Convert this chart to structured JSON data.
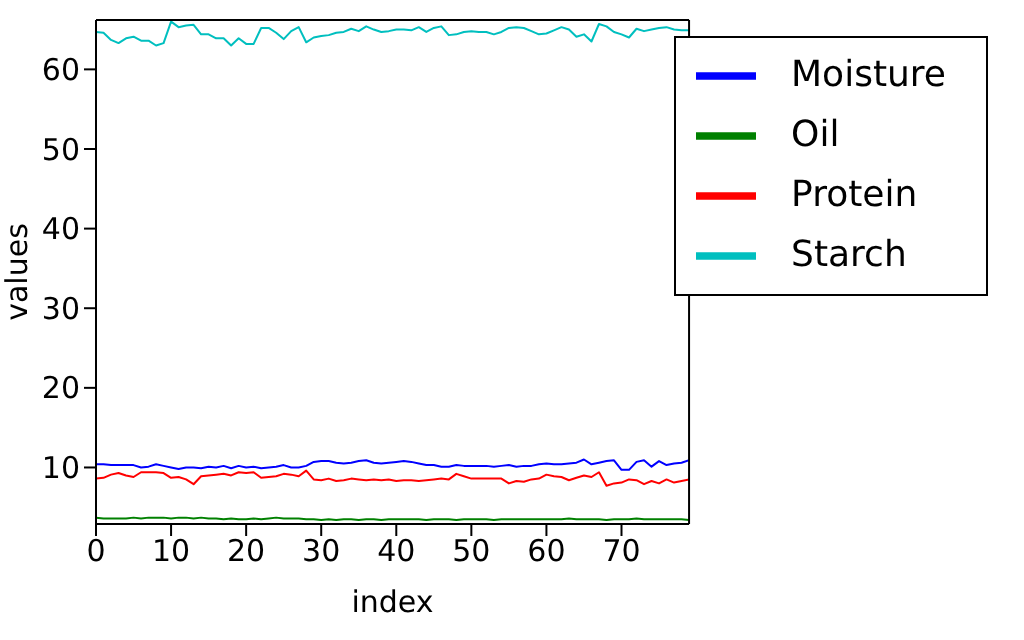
{
  "chart_data": {
    "type": "line",
    "xlabel": "index",
    "ylabel": "values",
    "x": [
      0,
      1,
      2,
      3,
      4,
      5,
      6,
      7,
      8,
      9,
      10,
      11,
      12,
      13,
      14,
      15,
      16,
      17,
      18,
      19,
      20,
      21,
      22,
      23,
      24,
      25,
      26,
      27,
      28,
      29,
      30,
      31,
      32,
      33,
      34,
      35,
      36,
      37,
      38,
      39,
      40,
      41,
      42,
      43,
      44,
      45,
      46,
      47,
      48,
      49,
      50,
      51,
      52,
      53,
      54,
      55,
      56,
      57,
      58,
      59,
      60,
      61,
      62,
      63,
      64,
      65,
      66,
      67,
      68,
      69,
      70,
      71,
      72,
      73,
      74,
      75,
      76,
      77,
      78,
      79
    ],
    "series": [
      {
        "name": "Moisture",
        "color": "#0000ff",
        "values": [
          10.4,
          10.4,
          10.3,
          10.3,
          10.3,
          10.3,
          10.0,
          10.1,
          10.4,
          10.2,
          10.0,
          9.8,
          10.0,
          10.0,
          9.9,
          10.1,
          10.0,
          10.2,
          9.9,
          10.2,
          10.0,
          10.1,
          9.9,
          10.0,
          10.1,
          10.3,
          10.0,
          10.0,
          10.2,
          10.7,
          10.8,
          10.8,
          10.6,
          10.5,
          10.6,
          10.8,
          10.9,
          10.6,
          10.5,
          10.6,
          10.7,
          10.8,
          10.7,
          10.5,
          10.3,
          10.3,
          10.1,
          10.1,
          10.3,
          10.2,
          10.2,
          10.2,
          10.2,
          10.1,
          10.2,
          10.3,
          10.1,
          10.2,
          10.2,
          10.4,
          10.5,
          10.4,
          10.4,
          10.5,
          10.6,
          11.0,
          10.4,
          10.6,
          10.8,
          10.9,
          9.7,
          9.7,
          10.7,
          10.9,
          10.1,
          10.8,
          10.3,
          10.5,
          10.6,
          10.9
        ]
      },
      {
        "name": "Oil",
        "color": "#008000",
        "values": [
          3.7,
          3.6,
          3.6,
          3.6,
          3.6,
          3.7,
          3.6,
          3.7,
          3.7,
          3.7,
          3.6,
          3.7,
          3.7,
          3.6,
          3.7,
          3.6,
          3.6,
          3.5,
          3.6,
          3.5,
          3.5,
          3.6,
          3.5,
          3.6,
          3.7,
          3.6,
          3.6,
          3.6,
          3.5,
          3.5,
          3.4,
          3.5,
          3.4,
          3.5,
          3.5,
          3.4,
          3.5,
          3.5,
          3.4,
          3.5,
          3.5,
          3.5,
          3.5,
          3.5,
          3.4,
          3.5,
          3.5,
          3.5,
          3.4,
          3.5,
          3.5,
          3.5,
          3.5,
          3.4,
          3.5,
          3.5,
          3.5,
          3.5,
          3.5,
          3.5,
          3.5,
          3.5,
          3.5,
          3.6,
          3.5,
          3.5,
          3.5,
          3.5,
          3.4,
          3.5,
          3.5,
          3.5,
          3.6,
          3.5,
          3.5,
          3.5,
          3.5,
          3.5,
          3.5,
          3.4
        ]
      },
      {
        "name": "Protein",
        "color": "#ff0000",
        "values": [
          8.6,
          8.7,
          9.1,
          9.3,
          9.0,
          8.8,
          9.4,
          9.4,
          9.4,
          9.3,
          8.7,
          8.8,
          8.5,
          7.9,
          8.9,
          9.0,
          9.1,
          9.2,
          9.0,
          9.4,
          9.3,
          9.4,
          8.7,
          8.8,
          8.9,
          9.2,
          9.1,
          8.9,
          9.6,
          8.5,
          8.4,
          8.6,
          8.3,
          8.4,
          8.6,
          8.5,
          8.4,
          8.5,
          8.4,
          8.5,
          8.3,
          8.4,
          8.4,
          8.3,
          8.4,
          8.5,
          8.6,
          8.5,
          9.2,
          8.9,
          8.6,
          8.6,
          8.6,
          8.6,
          8.6,
          8.0,
          8.3,
          8.2,
          8.5,
          8.6,
          9.1,
          8.9,
          8.8,
          8.4,
          8.7,
          9.0,
          8.8,
          9.4,
          7.7,
          8.0,
          8.1,
          8.5,
          8.4,
          7.9,
          8.3,
          8.0,
          8.5,
          8.1,
          8.3,
          8.5
        ]
      },
      {
        "name": "Starch",
        "color": "#00bfbf",
        "values": [
          64.7,
          64.6,
          63.7,
          63.3,
          63.9,
          64.1,
          63.6,
          63.6,
          63.0,
          63.3,
          66.0,
          65.3,
          65.5,
          65.6,
          64.4,
          64.4,
          63.9,
          63.9,
          63.0,
          63.9,
          63.2,
          63.2,
          65.2,
          65.2,
          64.6,
          63.8,
          64.8,
          65.3,
          63.4,
          64.0,
          64.2,
          64.3,
          64.6,
          64.7,
          65.1,
          64.8,
          65.4,
          65.0,
          64.7,
          64.8,
          65.0,
          65.0,
          64.9,
          65.3,
          64.7,
          65.2,
          65.4,
          64.3,
          64.4,
          64.7,
          64.8,
          64.7,
          64.7,
          64.4,
          64.7,
          65.2,
          65.3,
          65.2,
          64.8,
          64.4,
          64.5,
          64.9,
          65.3,
          65.0,
          64.1,
          64.4,
          63.5,
          65.7,
          65.4,
          64.7,
          64.4,
          64.0,
          65.1,
          64.8,
          65.0,
          65.2,
          65.3,
          65.0,
          64.9,
          64.9
        ]
      }
    ],
    "xlim": [
      0,
      79
    ],
    "xticks": [
      0,
      10,
      20,
      30,
      40,
      50,
      60,
      70
    ],
    "ylim": [
      2.9,
      66.2
    ],
    "yticks": [
      10,
      20,
      30,
      40,
      50,
      60
    ],
    "grid": false,
    "legend": "top right",
    "marker": "none",
    "line_style": "solid"
  }
}
